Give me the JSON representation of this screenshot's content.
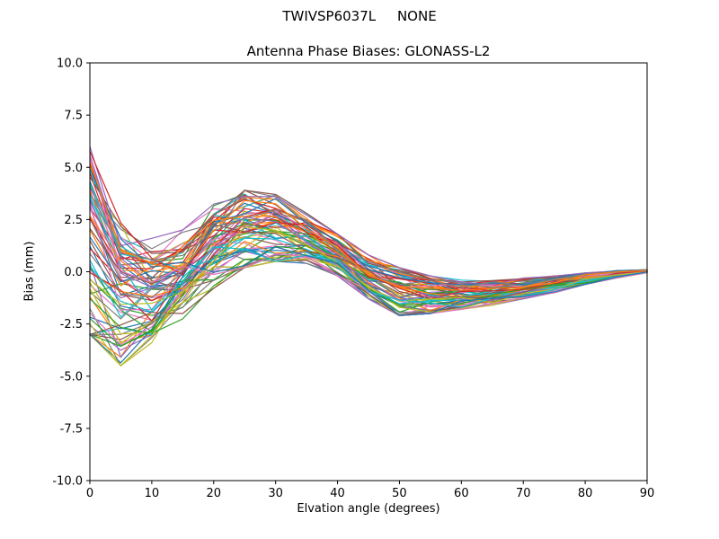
{
  "chart_data": {
    "type": "line",
    "title": "TWIVSP6037L     NONE",
    "subtitle": "Antenna Phase Biases: GLONASS-L2",
    "xlabel": "Elvation angle (degrees)",
    "ylabel": "Bias (mm)",
    "xlim": [
      0,
      90
    ],
    "ylim": [
      -10,
      10
    ],
    "grid": false,
    "legend": "none",
    "x_ticks": [
      0,
      10,
      20,
      30,
      40,
      50,
      60,
      70,
      80,
      90
    ],
    "y_ticks": [
      10.0,
      7.5,
      5.0,
      2.5,
      0.0,
      -2.5,
      -5.0,
      -7.5,
      -10.0
    ],
    "y_tick_labels": [
      "10.0",
      "7.5",
      "5.0",
      "2.5",
      "0.0",
      "-2.5",
      "-5.0",
      "-7.5",
      "-10.0"
    ],
    "x": [
      0,
      5,
      10,
      15,
      20,
      25,
      30,
      35,
      40,
      45,
      50,
      55,
      60,
      65,
      70,
      75,
      80,
      85,
      90
    ],
    "envelope_max": [
      6.0,
      2.5,
      1.6,
      2.0,
      3.3,
      3.9,
      3.7,
      2.8,
      1.8,
      0.8,
      0.2,
      -0.2,
      -0.4,
      -0.4,
      -0.3,
      -0.2,
      -0.05,
      0.05,
      0.1
    ],
    "envelope_min": [
      -3.0,
      -4.5,
      -3.7,
      -2.3,
      -0.8,
      0.2,
      0.5,
      0.4,
      -0.2,
      -1.3,
      -2.1,
      -2.0,
      -1.8,
      -1.6,
      -1.3,
      -1.0,
      -0.6,
      -0.3,
      -0.05
    ],
    "n_series": 72,
    "palette": [
      "#1f77b4",
      "#ff7f0e",
      "#2ca02c",
      "#d62728",
      "#9467bd",
      "#8c564b",
      "#e377c2",
      "#7f7f7f",
      "#bcbd22",
      "#17becf"
    ],
    "axes_color": "#000000",
    "background_color": "#ffffff"
  }
}
